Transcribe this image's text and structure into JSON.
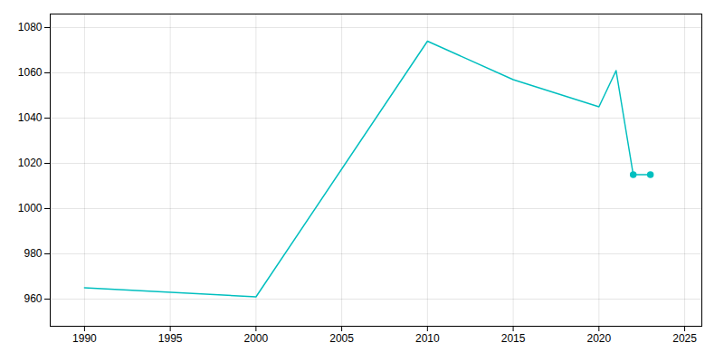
{
  "chart_data": {
    "type": "line",
    "x": [
      1990,
      2000,
      2010,
      2015,
      2020,
      2021,
      2022,
      2023
    ],
    "series": [
      {
        "type": "line",
        "color": "#00BFBF",
        "values": [
          965,
          961,
          1074,
          1057,
          1045,
          1061,
          1015,
          1015
        ]
      },
      {
        "type": "scatter",
        "color": "#00BFBF",
        "marker": "o",
        "values": [
          null,
          null,
          null,
          null,
          null,
          null,
          1015,
          1015
        ]
      }
    ],
    "xlim": [
      1988,
      2026
    ],
    "ylim": [
      948,
      1086
    ],
    "xticks": [
      1990,
      1995,
      2000,
      2005,
      2010,
      2015,
      2020,
      2025
    ],
    "yticks": [
      960,
      980,
      1000,
      1020,
      1040,
      1060,
      1080
    ],
    "grid": true
  }
}
